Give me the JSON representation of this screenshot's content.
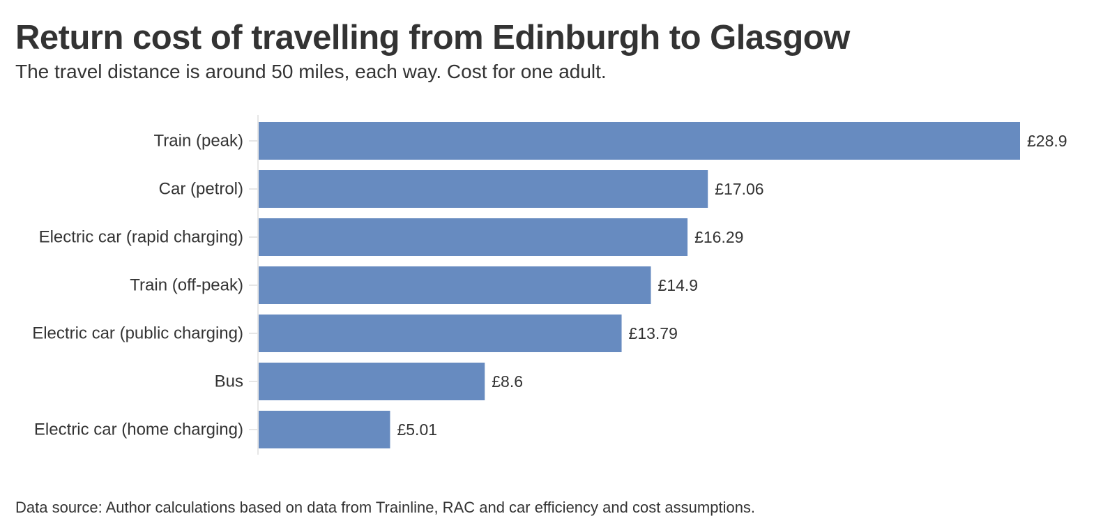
{
  "title": "Return cost of travelling from Edinburgh to Glasgow",
  "subtitle": "The travel distance is around 50 miles, each way. Cost for one adult.",
  "source": "Data source: Author calculations based on data from Trainline, RAC and car efficiency and cost assumptions.",
  "colors": {
    "bar": "#678BC0",
    "text": "#333333",
    "axis": "#E6E6E6"
  },
  "chart_data": {
    "type": "bar",
    "orientation": "horizontal",
    "categories": [
      "Train (peak)",
      "Car (petrol)",
      "Electric car (rapid charging)",
      "Train (off-peak)",
      "Electric car (public charging)",
      "Bus",
      "Electric car (home charging)"
    ],
    "values": [
      28.9,
      17.06,
      16.29,
      14.9,
      13.79,
      8.6,
      5.01
    ],
    "value_labels": [
      "£28.9",
      "£17.06",
      "£16.29",
      "£14.9",
      "£13.79",
      "£8.6",
      "£5.01"
    ],
    "title": "Return cost of travelling from Edinburgh to Glasgow",
    "subtitle": "The travel distance is around 50 miles, each way. Cost for one adult.",
    "xlabel": "",
    "ylabel": "",
    "xlim": [
      0,
      28.9
    ],
    "grid": false,
    "legend": "none"
  }
}
